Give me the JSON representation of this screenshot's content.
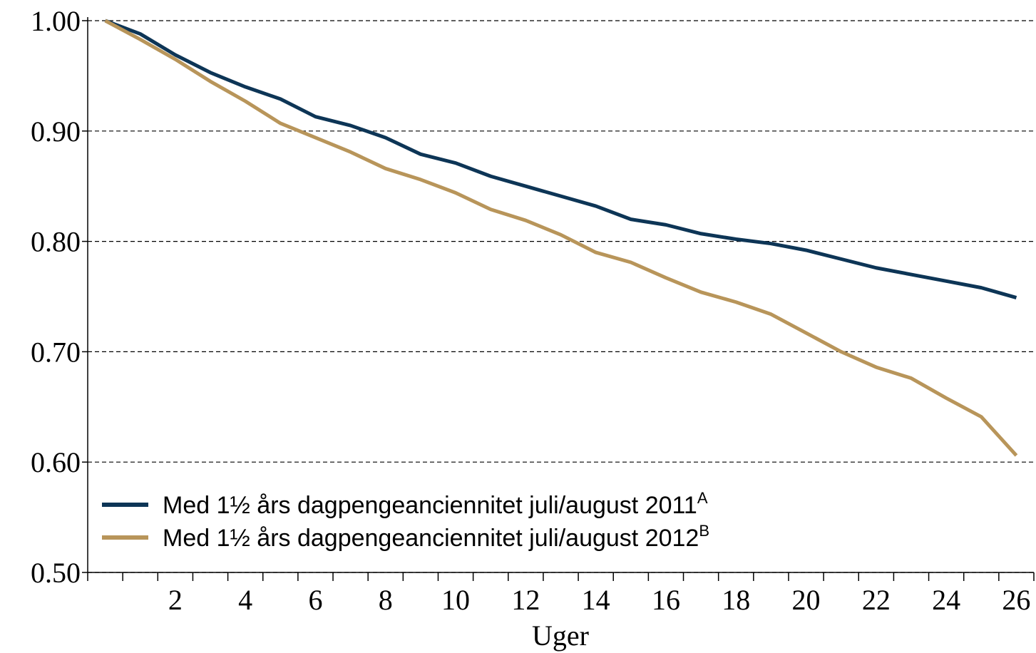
{
  "chart_data": {
    "type": "line",
    "xlabel": "Uger",
    "x": [
      0,
      1,
      2,
      3,
      4,
      5,
      6,
      7,
      8,
      9,
      10,
      11,
      12,
      13,
      14,
      15,
      16,
      17,
      18,
      19,
      20,
      21,
      22,
      23,
      24,
      25,
      26
    ],
    "series": [
      {
        "name": "Med 1½ års dagpengeanciennitet juli/august 2011",
        "note": "A",
        "color": "#0d3556",
        "values": [
          1.0,
          0.988,
          0.969,
          0.953,
          0.94,
          0.929,
          0.913,
          0.905,
          0.894,
          0.879,
          0.871,
          0.859,
          0.85,
          0.841,
          0.832,
          0.82,
          0.815,
          0.807,
          0.802,
          0.798,
          0.792,
          0.784,
          0.776,
          0.77,
          0.764,
          0.758,
          0.749
        ]
      },
      {
        "name": "Med 1½ års dagpengeanciennitet juli/august 2012",
        "note": "B",
        "color": "#b8955a",
        "values": [
          1.0,
          0.983,
          0.965,
          0.945,
          0.927,
          0.907,
          0.894,
          0.881,
          0.866,
          0.856,
          0.844,
          0.829,
          0.819,
          0.806,
          0.79,
          0.781,
          0.767,
          0.754,
          0.745,
          0.734,
          0.717,
          0.7,
          0.686,
          0.676,
          0.658,
          0.641,
          0.606
        ]
      }
    ],
    "xlim": [
      -0.5,
      26.5
    ],
    "xticks": [
      2,
      4,
      6,
      8,
      10,
      12,
      14,
      16,
      18,
      20,
      22,
      24,
      26
    ],
    "ylim": [
      0.5,
      1.0
    ],
    "yticks": [
      {
        "value": 0.5,
        "label": "0.50"
      },
      {
        "value": 0.6,
        "label": "0.60"
      },
      {
        "value": 0.7,
        "label": "0.70"
      },
      {
        "value": 0.8,
        "label": "0.80"
      },
      {
        "value": 0.9,
        "label": "0.90"
      },
      {
        "value": 1.0,
        "label": "1.00"
      }
    ],
    "grid": true,
    "legend": "lower left"
  }
}
